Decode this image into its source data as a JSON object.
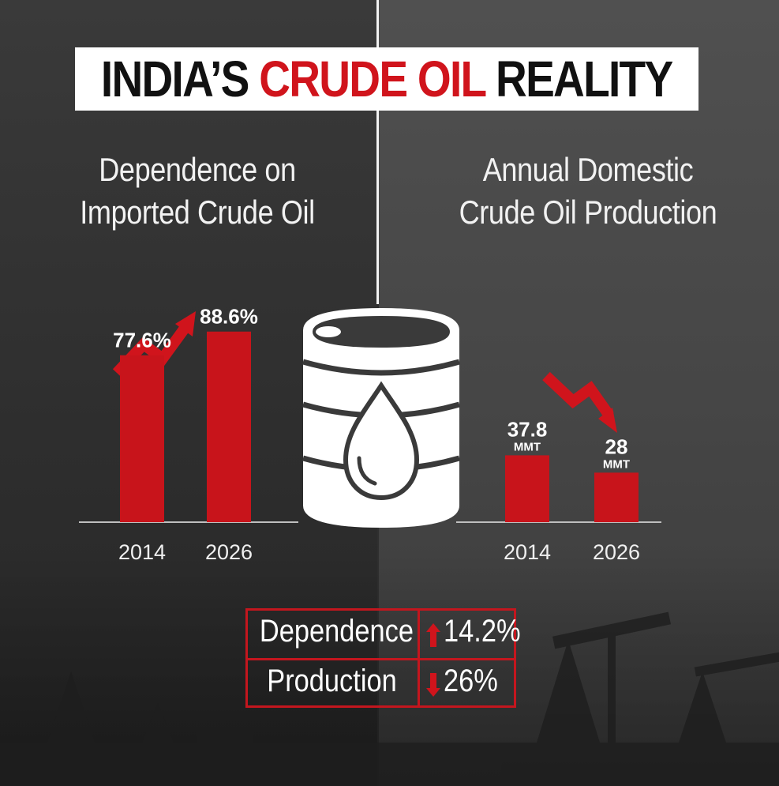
{
  "title": {
    "part1": "INDIA’S",
    "part2": "CRUDE OIL",
    "part3": "REALITY"
  },
  "colors": {
    "accent": "#d0141c",
    "text": "#ffffff",
    "dark_bg": "#2f2f2f",
    "right_bg": "#4a4a4a"
  },
  "icons": [
    "trend-up-arrow-icon",
    "trend-down-arrow-icon",
    "oil-barrel-icon",
    "oil-drop-icon",
    "up-arrow-icon",
    "down-arrow-icon"
  ],
  "chart_data": [
    {
      "type": "bar",
      "title_lines": [
        "Dependence on",
        "Imported Crude Oil"
      ],
      "categories": [
        "2014",
        "2026"
      ],
      "values": [
        77.6,
        88.6
      ],
      "value_labels": [
        "77.6%",
        "88.6%"
      ],
      "unit_labels": [
        "",
        ""
      ],
      "ylim": [
        0,
        100
      ],
      "trend": "up"
    },
    {
      "type": "bar",
      "title_lines": [
        "Annual Domestic",
        "Crude Oil Production"
      ],
      "categories": [
        "2014",
        "2026"
      ],
      "values": [
        37.8,
        28
      ],
      "value_labels": [
        "37.8",
        "28"
      ],
      "unit_labels": [
        "MMT",
        "MMT"
      ],
      "ylim": [
        0,
        100
      ],
      "trend": "down"
    }
  ],
  "summary": [
    {
      "label": "Dependence",
      "direction": "up",
      "value": "14.2%"
    },
    {
      "label": "Production",
      "direction": "down",
      "value": "26%"
    }
  ]
}
